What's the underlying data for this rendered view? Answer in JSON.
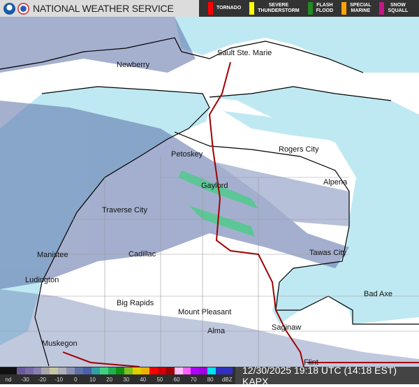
{
  "header": {
    "title": "NATIONAL WEATHER SERVICE",
    "logos": [
      "noaa-logo",
      "nws-logo"
    ]
  },
  "warnings": [
    {
      "label": "TORNADO",
      "color": "#ff0000"
    },
    {
      "label": "SEVERE\nTHUNDERSTORM",
      "color": "#ffff00"
    },
    {
      "label": "FLASH\nFLOOD",
      "color": "#228b22"
    },
    {
      "label": "SPECIAL\nMARINE",
      "color": "#ffa500"
    },
    {
      "label": "SNOW\nSQUALL",
      "color": "#c71585"
    }
  ],
  "map": {
    "colors": {
      "land": "#ffffff",
      "water": "#bfe9f2",
      "radar": "#5b6fa8",
      "border": "#000000",
      "highway": "#a00000"
    },
    "cities": [
      "Sault Ste. Marie",
      "Newberry",
      "Petoskey",
      "Rogers City",
      "Gaylord",
      "Alpena",
      "Traverse City",
      "Manistee",
      "Cadillac",
      "Tawas City",
      "Ludington",
      "Big Rapids",
      "Mount Pleasant",
      "Bad Axe",
      "Saginaw",
      "Alma",
      "Muskegon",
      "Flint"
    ]
  },
  "legend": {
    "ticks": [
      "nd",
      "-30",
      "-20",
      "-10",
      "0",
      "10",
      "20",
      "30",
      "40",
      "50",
      "60",
      "70",
      "80",
      "dBZ"
    ],
    "colors": [
      "#111111",
      "#111111",
      "#6a5a9a",
      "#7a6aa8",
      "#8a80b0",
      "#a8a8a8",
      "#c8c8a0",
      "#b0b0b8",
      "#8a90b0",
      "#6070a8",
      "#4a60a8",
      "#30a0a0",
      "#40d080",
      "#20b050",
      "#109010",
      "#80c020",
      "#e0d000",
      "#f0b000",
      "#ff0000",
      "#d00000",
      "#a00000",
      "#ffc0ff",
      "#ff60ff",
      "#b000ff",
      "#a000e0",
      "#00e0f0",
      "#3030c0",
      "#3030c0"
    ]
  },
  "timestamp": "12/30/2025 19:18 UTC (14:18 EST)  KAPX"
}
